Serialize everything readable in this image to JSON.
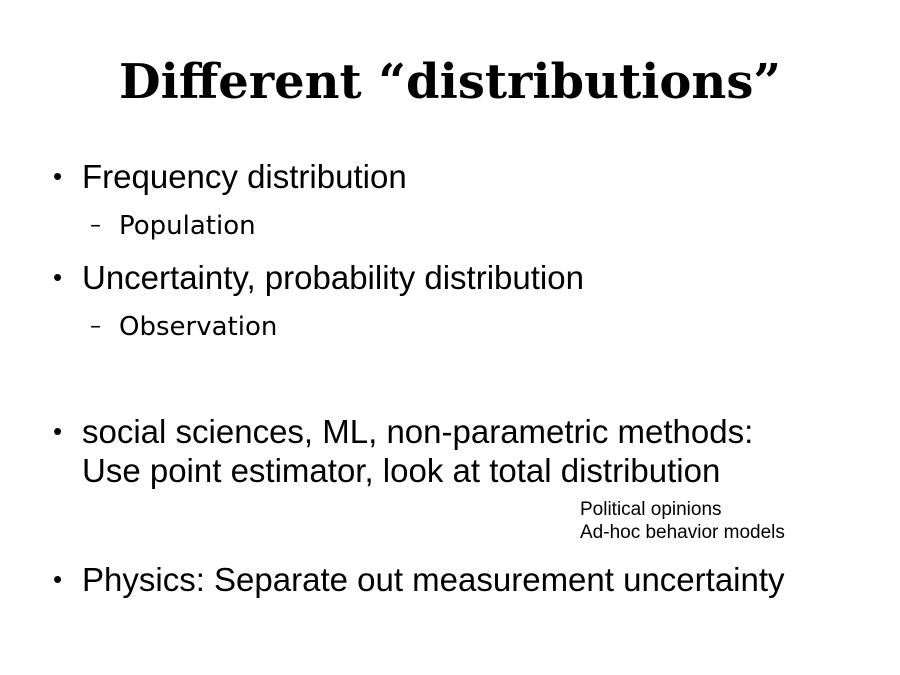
{
  "slide": {
    "title": "Different “distributions”",
    "bullets": [
      {
        "text": "Frequency distribution",
        "sub": "Population"
      },
      {
        "text": "Uncertainty, probability distribution",
        "sub": "Observation"
      },
      {
        "lines": [
          "social sciences, ML, non-parametric methods:",
          "Use point estimator, look at total distribution"
        ],
        "notes": [
          "Political opinions",
          "Ad-hoc behavior models"
        ]
      },
      {
        "text": "Physics: Separate out measurement uncertainty"
      }
    ],
    "bullet_symbol": "•",
    "sub_symbol": "–"
  }
}
